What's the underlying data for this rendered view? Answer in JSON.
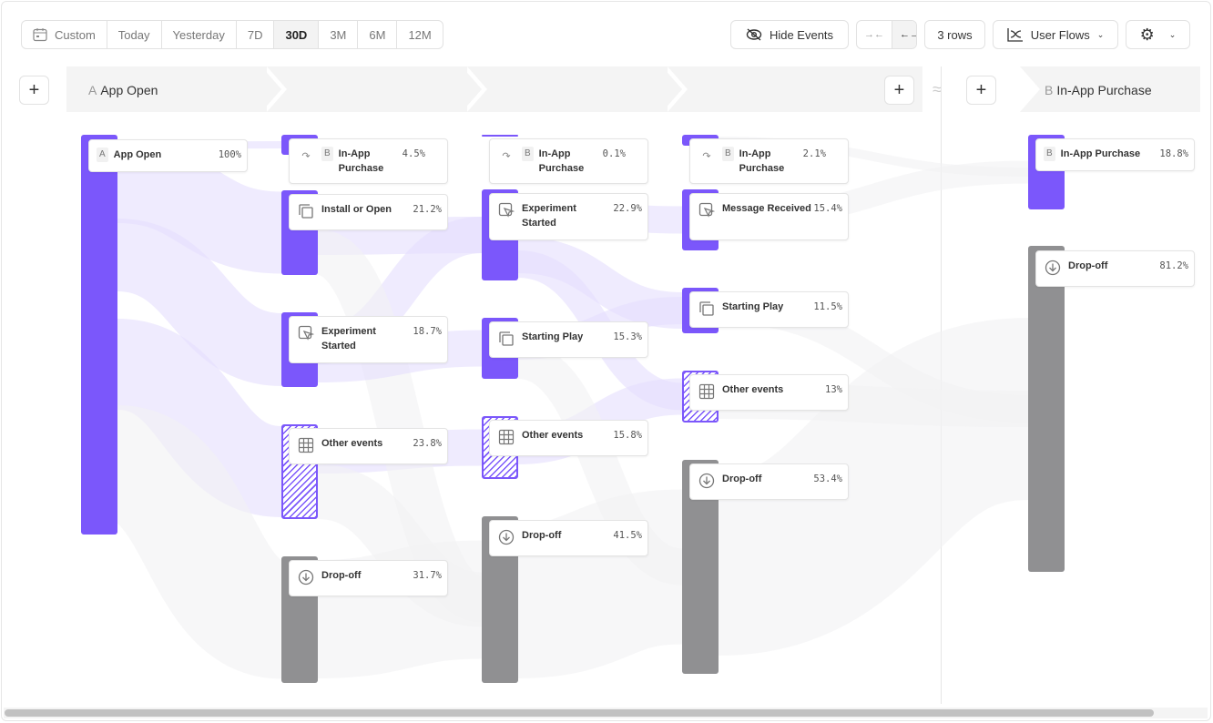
{
  "toolbar": {
    "date_ranges": [
      "Custom",
      "Today",
      "Yesterday",
      "7D",
      "30D",
      "3M",
      "6M",
      "12M"
    ],
    "active_range": "30D",
    "hide_events": "Hide Events",
    "rows": "3 rows",
    "view": "User Flows"
  },
  "header": {
    "start_step": {
      "letter": "A",
      "label": "App Open"
    },
    "end_step": {
      "letter": "B",
      "label": "In-App Purchase"
    },
    "separator": "≈"
  },
  "colors": {
    "accent": "#7b57fb",
    "dropoff": "#909092",
    "flow": "#e4defd"
  },
  "columns": [
    {
      "nodes": [
        {
          "label": "App Open",
          "tag": "A",
          "pct": "100%",
          "kind": "purple",
          "icon": "step-a"
        }
      ]
    },
    {
      "nodes": [
        {
          "label": "In-App Purchase",
          "tag": "B",
          "pct": "4.5%",
          "kind": "purple",
          "icon": "arrow-curve-icon"
        },
        {
          "label": "Install or Open",
          "pct": "21.2%",
          "kind": "purple",
          "icon": "copy-icon"
        },
        {
          "label": "Experiment Started",
          "pct": "18.7%",
          "kind": "purple",
          "icon": "cursor-click-icon"
        },
        {
          "label": "Other events",
          "pct": "23.8%",
          "kind": "hatch",
          "icon": "grid-icon"
        },
        {
          "label": "Drop-off",
          "pct": "31.7%",
          "kind": "gray",
          "icon": "arrow-down-circle-icon"
        }
      ]
    },
    {
      "nodes": [
        {
          "label": "In-App Purchase",
          "tag": "B",
          "pct": "0.1%",
          "kind": "purple",
          "icon": "arrow-curve-icon"
        },
        {
          "label": "Experiment Started",
          "pct": "22.9%",
          "kind": "purple",
          "icon": "cursor-click-icon"
        },
        {
          "label": "Starting Play",
          "pct": "15.3%",
          "kind": "purple",
          "icon": "copy-icon"
        },
        {
          "label": "Other events",
          "pct": "15.8%",
          "kind": "hatch",
          "icon": "grid-icon"
        },
        {
          "label": "Drop-off",
          "pct": "41.5%",
          "kind": "gray",
          "icon": "arrow-down-circle-icon"
        }
      ]
    },
    {
      "nodes": [
        {
          "label": "In-App Purchase",
          "tag": "B",
          "pct": "2.1%",
          "kind": "purple",
          "icon": "arrow-curve-icon"
        },
        {
          "label": "Message Received",
          "pct": "15.4%",
          "kind": "purple",
          "icon": "cursor-click-icon"
        },
        {
          "label": "Starting Play",
          "pct": "11.5%",
          "kind": "purple",
          "icon": "copy-icon"
        },
        {
          "label": "Other events",
          "pct": "13%",
          "kind": "hatch",
          "icon": "grid-icon"
        },
        {
          "label": "Drop-off",
          "pct": "53.4%",
          "kind": "gray",
          "icon": "arrow-down-circle-icon"
        }
      ]
    },
    {
      "nodes": [
        {
          "label": "In-App Purchase",
          "tag": "B",
          "pct": "18.8%",
          "kind": "purple",
          "icon": "step-b"
        },
        {
          "label": "Drop-off",
          "pct": "81.2%",
          "kind": "gray",
          "icon": "arrow-down-circle-icon"
        }
      ]
    }
  ]
}
